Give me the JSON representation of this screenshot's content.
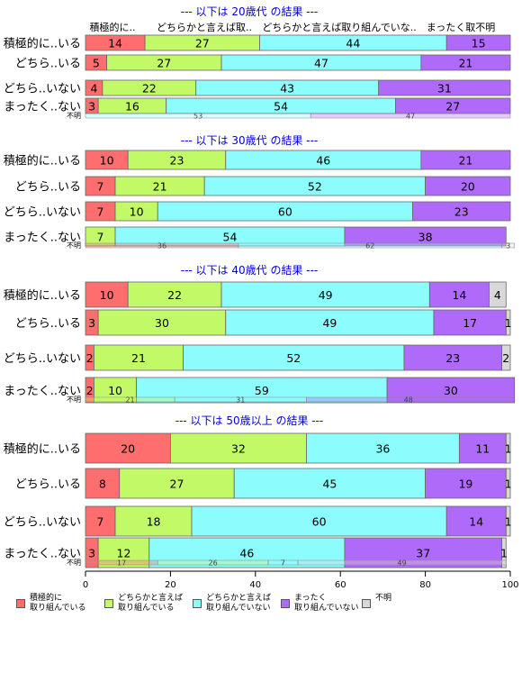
{
  "chart_data": {
    "type": "bar",
    "orientation": "horizontal-stacked-percent",
    "xlim": [
      0,
      100
    ],
    "xticks": [
      "0",
      "20",
      "40",
      "60",
      "80",
      "100"
    ],
    "legend_placement": "bottom",
    "colors": [
      "#ff6e6e",
      "#c2fa67",
      "#8dfcfc",
      "#b06af9",
      "#d8d8d8"
    ],
    "series_names": [
      "積極的に\n取り組んでいる",
      "どちらかと言えば\n取り組んでいる",
      "どちらかと言えば\n取り組んでいない",
      "まったく\n取り組んでいない",
      "不明"
    ],
    "column_headers": [
      "積極的に..",
      "どちらかと言えば取..",
      "どちらかと言えば取り組んでいな..",
      "まったく取不明"
    ],
    "unknown_label": "不明",
    "panels": [
      {
        "title": "--- 以下は 20歳代 の結果 ---",
        "rows": [
          {
            "label": "積極的に..いる",
            "values": [
              14,
              27,
              44,
              15,
              0
            ]
          },
          {
            "label": "どちら..いる",
            "values": [
              5,
              27,
              47,
              21,
              0
            ]
          },
          {
            "label": "どちら..いない",
            "values": [
              4,
              22,
              43,
              31,
              0
            ]
          },
          {
            "label": "まったく..ない",
            "values": [
              3,
              16,
              54,
              27,
              0
            ]
          }
        ],
        "unknown": [
          0,
          0,
          53,
          47,
          0
        ]
      },
      {
        "title": "--- 以下は 30歳代 の結果 ---",
        "rows": [
          {
            "label": "積極的に..いる",
            "values": [
              10,
              23,
              46,
              21,
              0
            ]
          },
          {
            "label": "どちら..いる",
            "values": [
              7,
              21,
              52,
              20,
              0
            ]
          },
          {
            "label": "どちら..いない",
            "values": [
              7,
              10,
              60,
              23,
              0
            ]
          },
          {
            "label": "まったく..ない",
            "values": [
              0,
              7,
              54,
              38,
              0
            ]
          }
        ],
        "unknown": [
          36,
          0,
          62,
          0,
          3
        ]
      },
      {
        "title": "--- 以下は 40歳代 の結果 ---",
        "rows": [
          {
            "label": "積極的に..いる",
            "values": [
              10,
              22,
              49,
              14,
              4
            ]
          },
          {
            "label": "どちら..いる",
            "values": [
              3,
              30,
              49,
              17,
              1
            ]
          },
          {
            "label": "どちら..いない",
            "values": [
              2,
              21,
              52,
              23,
              2
            ]
          },
          {
            "label": "まったく..ない",
            "values": [
              2,
              10,
              59,
              30,
              0
            ]
          }
        ],
        "unknown": [
          0,
          21,
          31,
          48,
          0
        ]
      },
      {
        "title": "--- 以下は 50歳以上 の結果 ---",
        "rows": [
          {
            "label": "積極的に..いる",
            "values": [
              20,
              32,
              36,
              11,
              1
            ]
          },
          {
            "label": "どちら..いる",
            "values": [
              8,
              27,
              45,
              19,
              1
            ]
          },
          {
            "label": "どちら..いない",
            "values": [
              7,
              18,
              60,
              14,
              1
            ]
          },
          {
            "label": "まったく..ない",
            "values": [
              3,
              12,
              46,
              37,
              1
            ]
          }
        ],
        "unknown": [
          17,
          26,
          7,
          0,
          49
        ]
      }
    ]
  }
}
